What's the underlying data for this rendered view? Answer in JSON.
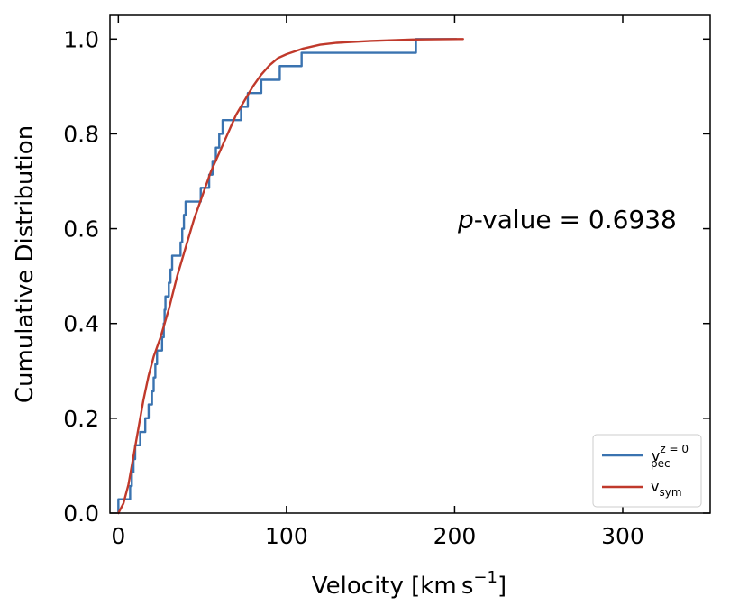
{
  "chart_data": {
    "type": "line",
    "xlabel": "Velocity [km s−1]",
    "xlabel_parts": {
      "main": "Velocity [km s",
      "sup": "−1",
      "tail": "]"
    },
    "ylabel": "Cumulative Distribution",
    "xlim": [
      -5,
      352
    ],
    "ylim": [
      0.0,
      1.05
    ],
    "xticks": [
      0,
      100,
      200,
      300
    ],
    "yticks": [
      0.0,
      0.2,
      0.4,
      0.6,
      0.8,
      1.0
    ],
    "xtick_labels": [
      "0",
      "100",
      "200",
      "300"
    ],
    "ytick_labels": [
      "0.0",
      "0.2",
      "0.4",
      "0.6",
      "0.8",
      "1.0"
    ],
    "grid": false,
    "legend_position": "bottom-right",
    "annotation": {
      "text": "p-value = 0.6938",
      "italic_part": "p",
      "rest": "-value = 0.6938",
      "x": 200,
      "y": 0.6
    },
    "series": [
      {
        "legend_base": "v",
        "legend_sub": "pec",
        "legend_sup": "z = 0",
        "color": "#3a73b0",
        "style": "step",
        "points": [
          [
            0,
            0.0
          ],
          [
            0,
            0.029
          ],
          [
            7,
            0.029
          ],
          [
            7,
            0.057
          ],
          [
            8,
            0.057
          ],
          [
            8,
            0.086
          ],
          [
            9,
            0.086
          ],
          [
            9,
            0.114
          ],
          [
            10,
            0.114
          ],
          [
            10,
            0.143
          ],
          [
            13,
            0.143
          ],
          [
            13,
            0.171
          ],
          [
            16,
            0.171
          ],
          [
            16,
            0.2
          ],
          [
            18,
            0.2
          ],
          [
            18,
            0.229
          ],
          [
            20,
            0.229
          ],
          [
            20,
            0.257
          ],
          [
            21,
            0.257
          ],
          [
            21,
            0.286
          ],
          [
            22,
            0.286
          ],
          [
            22,
            0.314
          ],
          [
            23,
            0.314
          ],
          [
            23,
            0.343
          ],
          [
            26,
            0.343
          ],
          [
            26,
            0.371
          ],
          [
            27,
            0.371
          ],
          [
            27,
            0.4
          ],
          [
            27.5,
            0.4
          ],
          [
            27.5,
            0.429
          ],
          [
            28,
            0.429
          ],
          [
            28,
            0.457
          ],
          [
            30,
            0.457
          ],
          [
            30,
            0.486
          ],
          [
            31,
            0.486
          ],
          [
            31,
            0.514
          ],
          [
            32,
            0.514
          ],
          [
            32,
            0.543
          ],
          [
            37,
            0.543
          ],
          [
            37,
            0.571
          ],
          [
            38,
            0.571
          ],
          [
            38,
            0.6
          ],
          [
            39,
            0.6
          ],
          [
            39,
            0.629
          ],
          [
            40,
            0.629
          ],
          [
            40,
            0.657
          ],
          [
            49,
            0.657
          ],
          [
            49,
            0.686
          ],
          [
            54,
            0.686
          ],
          [
            54,
            0.714
          ],
          [
            56,
            0.714
          ],
          [
            56,
            0.743
          ],
          [
            58,
            0.743
          ],
          [
            58,
            0.771
          ],
          [
            60,
            0.771
          ],
          [
            60,
            0.8
          ],
          [
            62,
            0.8
          ],
          [
            62,
            0.829
          ],
          [
            73,
            0.829
          ],
          [
            73,
            0.857
          ],
          [
            77,
            0.857
          ],
          [
            77,
            0.886
          ],
          [
            85,
            0.886
          ],
          [
            85,
            0.914
          ],
          [
            96,
            0.914
          ],
          [
            96,
            0.943
          ],
          [
            109,
            0.943
          ],
          [
            109,
            0.971
          ],
          [
            177,
            0.971
          ],
          [
            177,
            1.0
          ],
          [
            201,
            1.0
          ]
        ]
      },
      {
        "legend_base": "v",
        "legend_sub": "sym",
        "legend_sup": "",
        "color": "#c0392b",
        "style": "line",
        "points": [
          [
            0,
            0.0
          ],
          [
            3,
            0.02
          ],
          [
            6,
            0.06
          ],
          [
            9,
            0.12
          ],
          [
            12,
            0.18
          ],
          [
            15,
            0.24
          ],
          [
            18,
            0.29
          ],
          [
            21,
            0.33
          ],
          [
            25,
            0.37
          ],
          [
            30,
            0.43
          ],
          [
            35,
            0.5
          ],
          [
            40,
            0.56
          ],
          [
            45,
            0.62
          ],
          [
            50,
            0.67
          ],
          [
            55,
            0.72
          ],
          [
            60,
            0.76
          ],
          [
            65,
            0.8
          ],
          [
            70,
            0.84
          ],
          [
            75,
            0.87
          ],
          [
            80,
            0.9
          ],
          [
            85,
            0.925
          ],
          [
            90,
            0.945
          ],
          [
            95,
            0.96
          ],
          [
            100,
            0.968
          ],
          [
            110,
            0.98
          ],
          [
            120,
            0.988
          ],
          [
            130,
            0.992
          ],
          [
            150,
            0.996
          ],
          [
            175,
            0.999
          ],
          [
            205,
            1.0
          ]
        ]
      }
    ]
  }
}
